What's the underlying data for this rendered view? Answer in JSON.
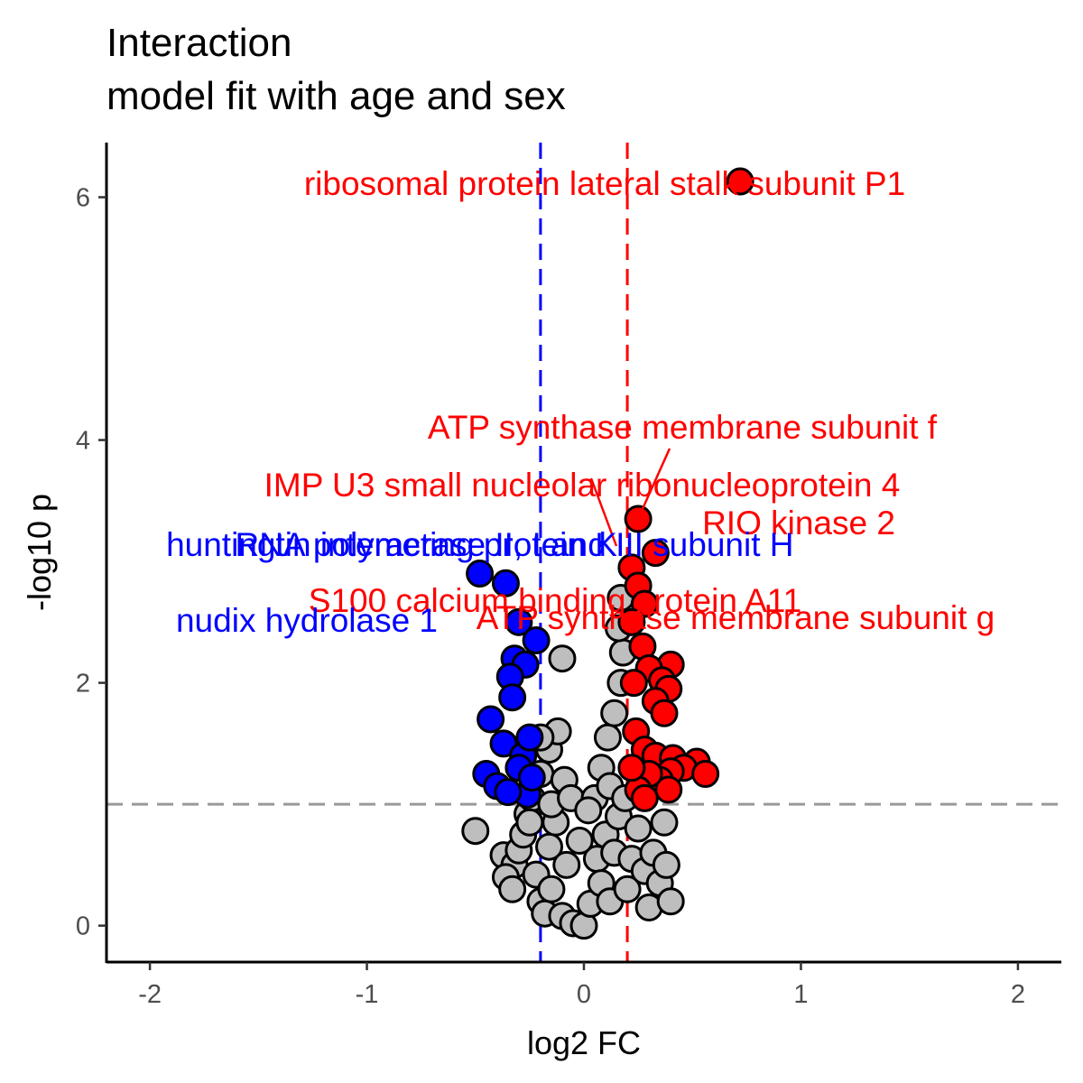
{
  "chart_data": {
    "type": "scatter",
    "title": "Interaction",
    "subtitle": "model fit with age and sex",
    "xlabel": "log2 FC",
    "ylabel": "-log10 p",
    "xlim": [
      -2.2,
      2.2
    ],
    "ylim": [
      -0.3,
      6.45
    ],
    "x_ticks": [
      -2,
      -1,
      0,
      1,
      2
    ],
    "x_tick_labels": [
      "-2",
      "-1",
      "0",
      "1",
      "2"
    ],
    "y_ticks": [
      0,
      2,
      4,
      6
    ],
    "y_tick_labels": [
      "0",
      "2",
      "4",
      "6"
    ],
    "grid": false,
    "legend": "none",
    "thresholds": {
      "fc_low": -0.2,
      "fc_high": 0.2,
      "neg_log10_p": 1.0
    },
    "colors": {
      "up": "#ff0000",
      "down": "#0000ff",
      "not_significant": "#bebebe",
      "outline": "#000000",
      "p_threshold_line": "#999999"
    },
    "points": {
      "not_significant": [
        [
          -0.5,
          0.78
        ],
        [
          -0.37,
          0.58
        ],
        [
          -0.32,
          0.5
        ],
        [
          -0.36,
          0.4
        ],
        [
          -0.33,
          0.3
        ],
        [
          -0.3,
          0.62
        ],
        [
          -0.28,
          0.75
        ],
        [
          -0.26,
          0.92
        ],
        [
          -0.22,
          0.42
        ],
        [
          -0.2,
          0.2
        ],
        [
          -0.18,
          0.1
        ],
        [
          -0.16,
          0.65
        ],
        [
          -0.15,
          0.3
        ],
        [
          -0.13,
          0.85
        ],
        [
          -0.1,
          0.08
        ],
        [
          -0.08,
          0.5
        ],
        [
          -0.05,
          0.02
        ],
        [
          0.0,
          0.0
        ],
        [
          0.03,
          0.18
        ],
        [
          0.06,
          0.55
        ],
        [
          0.08,
          0.35
        ],
        [
          0.1,
          0.75
        ],
        [
          0.12,
          0.2
        ],
        [
          0.14,
          0.6
        ],
        [
          0.16,
          0.9
        ],
        [
          0.2,
          0.3
        ],
        [
          0.22,
          0.55
        ],
        [
          0.25,
          0.8
        ],
        [
          0.28,
          0.45
        ],
        [
          0.3,
          0.15
        ],
        [
          0.32,
          0.6
        ],
        [
          0.35,
          0.35
        ],
        [
          0.37,
          0.85
        ],
        [
          0.38,
          0.5
        ],
        [
          0.4,
          0.2
        ],
        [
          -0.24,
          1.05
        ],
        [
          -0.2,
          1.25
        ],
        [
          -0.16,
          1.45
        ],
        [
          -0.12,
          1.6
        ],
        [
          -0.09,
          1.2
        ],
        [
          -0.15,
          1.0
        ],
        [
          -0.06,
          1.05
        ],
        [
          0.05,
          1.05
        ],
        [
          0.08,
          1.3
        ],
        [
          0.11,
          1.55
        ],
        [
          0.14,
          1.75
        ],
        [
          0.17,
          2.0
        ],
        [
          0.18,
          2.25
        ],
        [
          0.16,
          2.45
        ],
        [
          0.17,
          2.7
        ],
        [
          0.12,
          1.15
        ],
        [
          -0.1,
          2.2
        ],
        [
          -0.2,
          1.55
        ],
        [
          0.19,
          1.05
        ],
        [
          -0.02,
          0.7
        ],
        [
          0.02,
          0.95
        ],
        [
          -0.25,
          0.85
        ]
      ],
      "down": [
        [
          -0.48,
          2.9
        ],
        [
          -0.36,
          2.82
        ],
        [
          -0.22,
          2.35
        ],
        [
          -0.3,
          2.5
        ],
        [
          -0.32,
          2.2
        ],
        [
          -0.27,
          2.15
        ],
        [
          -0.34,
          2.05
        ],
        [
          -0.33,
          1.88
        ],
        [
          -0.43,
          1.7
        ],
        [
          -0.37,
          1.5
        ],
        [
          -0.28,
          1.4
        ],
        [
          -0.3,
          1.3
        ],
        [
          -0.45,
          1.25
        ],
        [
          -0.4,
          1.15
        ],
        [
          -0.26,
          1.08
        ],
        [
          -0.35,
          1.1
        ],
        [
          -0.25,
          1.55
        ],
        [
          -0.24,
          1.22
        ]
      ],
      "up": [
        [
          0.72,
          6.13
        ],
        [
          0.25,
          3.35
        ],
        [
          0.33,
          3.07
        ],
        [
          0.22,
          2.95
        ],
        [
          0.25,
          2.8
        ],
        [
          0.28,
          2.65
        ],
        [
          0.22,
          2.5
        ],
        [
          0.27,
          2.3
        ],
        [
          0.4,
          2.15
        ],
        [
          0.3,
          2.12
        ],
        [
          0.36,
          2.02
        ],
        [
          0.23,
          2.0
        ],
        [
          0.39,
          1.95
        ],
        [
          0.33,
          1.85
        ],
        [
          0.37,
          1.75
        ],
        [
          0.24,
          1.6
        ],
        [
          0.28,
          1.45
        ],
        [
          0.33,
          1.4
        ],
        [
          0.41,
          1.38
        ],
        [
          0.52,
          1.35
        ],
        [
          0.46,
          1.3
        ],
        [
          0.56,
          1.25
        ],
        [
          0.4,
          1.27
        ],
        [
          0.35,
          1.2
        ],
        [
          0.39,
          1.12
        ],
        [
          0.3,
          1.25
        ],
        [
          0.25,
          1.12
        ],
        [
          0.28,
          1.05
        ],
        [
          0.22,
          1.3
        ]
      ]
    },
    "annotations": [
      {
        "text": "ribosomal protein lateral stalk subunit P1",
        "group": "up",
        "x": 0.72,
        "y": 6.13
      },
      {
        "text": "ATP synthase membrane subunit f",
        "group": "up",
        "x": 0.25,
        "y": 3.35
      },
      {
        "text": "IMP U3 small nucleolar ribonucleoprotein 4",
        "group": "up",
        "x": 0.22,
        "y": 2.95
      },
      {
        "text": "RIO kinase 2",
        "group": "up",
        "x": 0.33,
        "y": 3.07
      },
      {
        "text": "huntingtin interacting protein K",
        "group": "down",
        "x": -0.48,
        "y": 2.9
      },
      {
        "text": "RNA polymerase II, I and III subunit H",
        "group": "down",
        "x": -0.36,
        "y": 2.82
      },
      {
        "text": "S100 calcium binding protein A11",
        "group": "up",
        "x": 0.28,
        "y": 2.65
      },
      {
        "text": "nudix hydrolase 1",
        "group": "down",
        "x": -0.22,
        "y": 2.35
      },
      {
        "text": "ATP synthase membrane subunit g",
        "group": "up",
        "x": 0.22,
        "y": 2.5
      }
    ]
  }
}
